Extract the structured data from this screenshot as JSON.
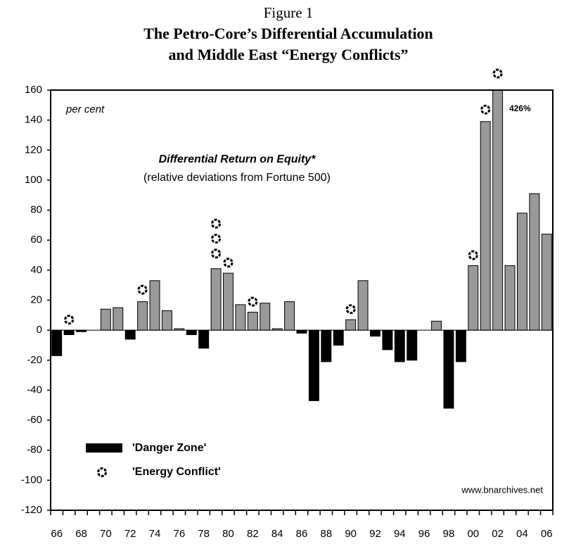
{
  "chart_data": {
    "type": "bar",
    "figure_label": "Figure 1",
    "title": [
      "The Petro-Core’s Differential Accumulation",
      "and Middle East “Energy Conflicts”"
    ],
    "y_unit": "per cent",
    "subtitle": "Differential Return on Equity*",
    "subtitle2": "(relative deviations from Fortune 500)",
    "source": "www.bnarchives.net",
    "categories": [
      "66",
      null,
      "68",
      null,
      "70",
      null,
      "72",
      null,
      "74",
      null,
      "76",
      null,
      "78",
      null,
      "80",
      null,
      "82",
      null,
      "84",
      null,
      "86",
      null,
      "88",
      null,
      "90",
      null,
      "92",
      null,
      "94",
      null,
      "96",
      null,
      "98",
      null,
      "00",
      null,
      "02",
      null,
      "04",
      null,
      "06"
    ],
    "values": [
      -17,
      -3,
      -1,
      0,
      14,
      15,
      -6,
      19,
      33,
      13,
      1,
      -3,
      -12,
      41,
      38,
      17,
      12,
      18,
      1,
      19,
      -2,
      -47,
      -21,
      -10,
      7,
      33,
      -4,
      -13,
      -21,
      -20,
      0,
      6,
      -52,
      -21,
      43,
      139,
      426,
      43,
      78,
      91,
      64
    ],
    "value_labels": [
      null,
      null,
      null,
      null,
      null,
      null,
      null,
      null,
      null,
      null,
      null,
      null,
      null,
      null,
      null,
      null,
      null,
      null,
      null,
      null,
      null,
      null,
      null,
      null,
      null,
      null,
      null,
      null,
      null,
      null,
      null,
      null,
      null,
      null,
      null,
      null,
      "426%",
      null,
      null,
      null,
      null
    ],
    "conflicts": [
      null,
      [
        7
      ],
      null,
      null,
      null,
      null,
      null,
      [
        27
      ],
      null,
      null,
      null,
      null,
      null,
      [
        51,
        61,
        71
      ],
      [
        45
      ],
      null,
      [
        19
      ],
      null,
      null,
      null,
      null,
      null,
      null,
      null,
      [
        14
      ],
      null,
      null,
      null,
      null,
      null,
      null,
      null,
      null,
      null,
      [
        50
      ],
      [
        147
      ],
      [
        171
      ],
      null,
      null,
      null,
      null
    ],
    "color": "#999999",
    "negative_color": "#000000",
    "legend": [
      "'Danger Zone'",
      "'Energy Conflict'"
    ],
    "ylim": [
      -120,
      160
    ],
    "yticks": [
      -120,
      -100,
      -80,
      -60,
      -40,
      -20,
      0,
      20,
      40,
      60,
      80,
      100,
      120,
      140,
      160
    ]
  }
}
